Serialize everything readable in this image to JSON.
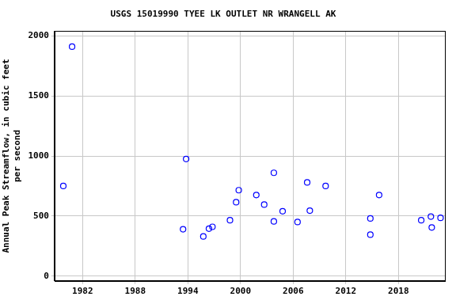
{
  "chart_data": {
    "type": "scatter",
    "title": "USGS 15019990 TYEE LK OUTLET NR WRANGELL AK",
    "y_label": [
      "Annual Peak Streamflow, in cubic feet",
      "per second"
    ],
    "x": [
      1979.8,
      1980.8,
      1993.45,
      1993.8,
      1995.76,
      1996.4,
      1996.8,
      1998.8,
      1999.5,
      1999.8,
      2001.8,
      2002.7,
      2003.8,
      2003.8,
      2004.8,
      2006.5,
      2007.6,
      2007.9,
      2009.7,
      2014.8,
      2014.8,
      2015.8,
      2020.6,
      2021.7,
      2021.8,
      2022.8
    ],
    "values": [
      750,
      1910,
      390,
      975,
      330,
      395,
      410,
      465,
      615,
      715,
      675,
      595,
      860,
      455,
      540,
      450,
      780,
      545,
      750,
      480,
      345,
      675,
      465,
      495,
      405,
      485
    ],
    "color": "#0000ff",
    "marker": "circle",
    "xlim": [
      1978.8,
      2023.3
    ],
    "xticks": [
      1982,
      1988,
      1994,
      2000,
      2006,
      2012,
      2018
    ],
    "ylim": [
      -40,
      2040
    ],
    "yticks": [
      0,
      500,
      1000,
      1500,
      2000
    ],
    "grid": true
  }
}
